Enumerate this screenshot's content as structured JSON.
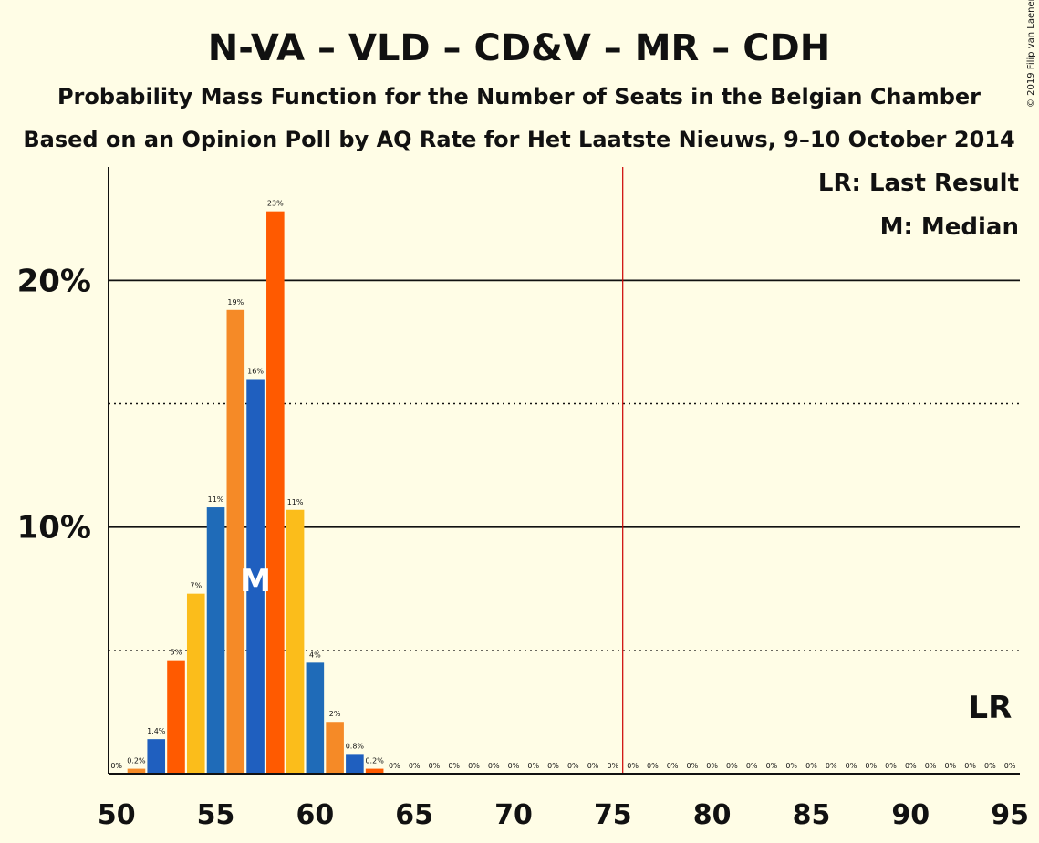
{
  "title": "N-VA – VLD – CD&V – MR – CDH",
  "subtitle1": "Probability Mass Function for the Number of Seats in the Belgian Chamber",
  "subtitle2": "Based on an Opinion Poll by AQ Rate for Het Laatste Nieuws, 9–10 October 2014",
  "copyright": "© 2019 Filip van Laenen",
  "legend": {
    "last_result": "LR: Last Result",
    "median": "M: Median"
  },
  "markers": {
    "lr_label": "LR",
    "median_label": "M",
    "lr_seat": 94,
    "median_seat": 57,
    "majority_seat": 76
  },
  "colors": {
    "bar_colors": [
      "#1f6bb8",
      "#f58a27",
      "#1f5fbf",
      "#ff5a00",
      "#fbbd1b"
    ],
    "majority_line": "#cc0000",
    "background": "#fffde6"
  },
  "chart_data": {
    "type": "bar",
    "x": [
      50,
      51,
      52,
      53,
      54,
      55,
      56,
      57,
      58,
      59,
      60,
      61,
      62,
      63,
      64,
      65,
      66,
      67,
      68,
      69,
      70,
      71,
      72,
      73,
      74,
      75,
      76,
      77,
      78,
      79,
      80,
      81,
      82,
      83,
      84,
      85,
      86,
      87,
      88,
      89,
      90,
      91,
      92,
      93,
      94,
      95
    ],
    "values": [
      0,
      0.2,
      1.4,
      4.6,
      7.3,
      10.8,
      18.8,
      16,
      22.8,
      10.7,
      4.5,
      2.1,
      0.8,
      0.2,
      0,
      0,
      0,
      0,
      0,
      0,
      0,
      0,
      0,
      0,
      0,
      0,
      0,
      0,
      0,
      0,
      0,
      0,
      0,
      0,
      0,
      0,
      0,
      0,
      0,
      0,
      0,
      0,
      0,
      0,
      0,
      0
    ],
    "labels": [
      "0%",
      "0.2%",
      "1.4%",
      "5%",
      "7%",
      "11%",
      "19%",
      "16%",
      "23%",
      "11%",
      "4%",
      "2%",
      "0.8%",
      "0.2%",
      "0%",
      "0%",
      "0%",
      "0%",
      "0%",
      "0%",
      "0%",
      "0%",
      "0%",
      "0%",
      "0%",
      "0%",
      "0%",
      "0%",
      "0%",
      "0%",
      "0%",
      "0%",
      "0%",
      "0%",
      "0%",
      "0%",
      "0%",
      "0%",
      "0%",
      "0%",
      "0%",
      "0%",
      "0%",
      "0%",
      "0%",
      "0%"
    ],
    "xticks": [
      50,
      55,
      60,
      65,
      70,
      75,
      80,
      85,
      90,
      95
    ],
    "yticks": [
      {
        "value": 10,
        "label": "10%"
      },
      {
        "value": 20,
        "label": "20%"
      }
    ],
    "ygrid_dotted": [
      5,
      15
    ],
    "ylim": [
      0,
      24.6
    ],
    "xlim": [
      49.6,
      95.5
    ]
  }
}
